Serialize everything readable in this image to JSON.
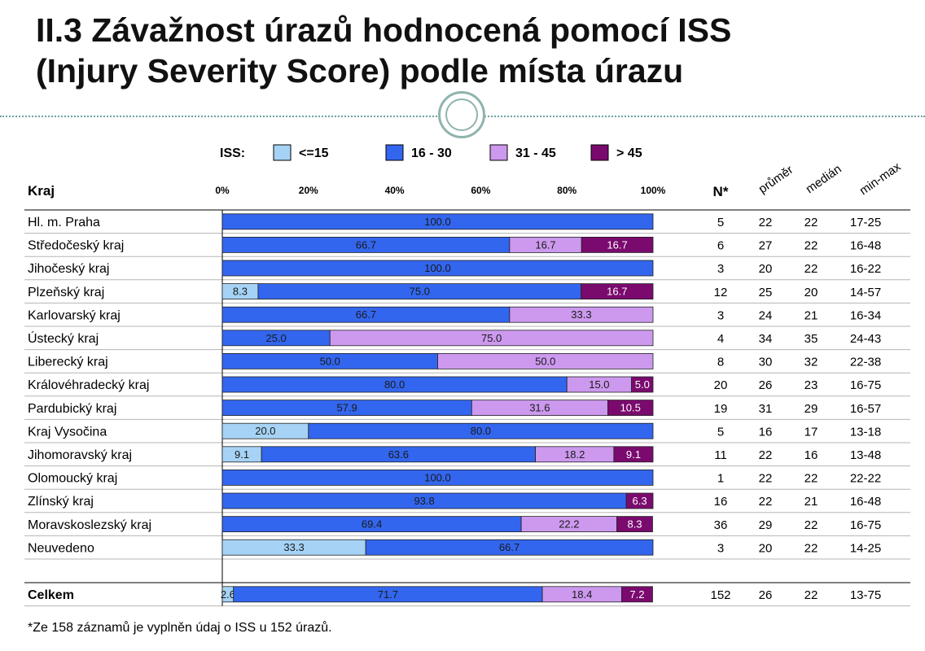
{
  "slide": {
    "title_line1": "II.3 Závažnost úrazů hodnocená pomocí ISS",
    "title_line2": "(Injury Severity Score) podle místa úrazu",
    "footnote": "*Ze 158 záznamů je vyplněn údaj o ISS  u 152 úrazů."
  },
  "chart_data": {
    "type": "bar",
    "orientation": "horizontal",
    "stacked": "percent",
    "legend_title": "ISS:",
    "legend_position": "top",
    "category_header": "Kraj",
    "xlim": [
      0,
      100
    ],
    "x_ticks": [
      "0%",
      "20%",
      "40%",
      "60%",
      "80%",
      "100%"
    ],
    "series": [
      {
        "name": "<=15",
        "color": "#a6d3f5"
      },
      {
        "name": "16 - 30",
        "color": "#3366ee"
      },
      {
        "name": "31 - 45",
        "color": "#cc99ee"
      },
      {
        "name": "> 45",
        "color": "#7a0a6e"
      }
    ],
    "table_headers": [
      "N*",
      "průměr",
      "medián",
      "min-max"
    ],
    "rows": [
      {
        "label": "Hl. m. Praha",
        "values": [
          0,
          100.0,
          0,
          0
        ],
        "labels": [
          "",
          "100.0",
          "",
          ""
        ],
        "n": "5",
        "mean": "22",
        "median": "22",
        "range": "17-25"
      },
      {
        "label": "Středočeský kraj",
        "values": [
          0,
          66.7,
          16.7,
          16.7
        ],
        "labels": [
          "",
          "66.7",
          "16.7",
          "16.7"
        ],
        "n": "6",
        "mean": "27",
        "median": "22",
        "range": "16-48"
      },
      {
        "label": "Jihočeský kraj",
        "values": [
          0,
          100.0,
          0,
          0
        ],
        "labels": [
          "",
          "100.0",
          "",
          ""
        ],
        "n": "3",
        "mean": "20",
        "median": "22",
        "range": "16-22"
      },
      {
        "label": "Plzeňský kraj",
        "values": [
          8.3,
          75.0,
          0,
          16.7
        ],
        "labels": [
          "8.3",
          "75.0",
          "",
          "16.7"
        ],
        "n": "12",
        "mean": "25",
        "median": "20",
        "range": "14-57"
      },
      {
        "label": "Karlovarský kraj",
        "values": [
          0,
          66.7,
          33.3,
          0
        ],
        "labels": [
          "",
          "66.7",
          "33.3",
          ""
        ],
        "n": "3",
        "mean": "24",
        "median": "21",
        "range": "16-34"
      },
      {
        "label": "Ústecký kraj",
        "values": [
          0,
          25.0,
          75.0,
          0
        ],
        "labels": [
          "",
          "25.0",
          "75.0",
          ""
        ],
        "n": "4",
        "mean": "34",
        "median": "35",
        "range": "24-43"
      },
      {
        "label": "Liberecký kraj",
        "values": [
          0,
          50.0,
          50.0,
          0
        ],
        "labels": [
          "",
          "50.0",
          "50.0",
          ""
        ],
        "n": "8",
        "mean": "30",
        "median": "32",
        "range": "22-38"
      },
      {
        "label": "Královéhradecký kraj",
        "values": [
          0,
          80.0,
          15.0,
          5.0
        ],
        "labels": [
          "",
          "80.0",
          "15.0",
          "5.0"
        ],
        "n": "20",
        "mean": "26",
        "median": "23",
        "range": "16-75"
      },
      {
        "label": "Pardubický kraj",
        "values": [
          0,
          57.9,
          31.6,
          10.5
        ],
        "labels": [
          "",
          "57.9",
          "31.6",
          "10.5"
        ],
        "n": "19",
        "mean": "31",
        "median": "29",
        "range": "16-57"
      },
      {
        "label": "Kraj Vysočina",
        "values": [
          20.0,
          80.0,
          0,
          0
        ],
        "labels": [
          "20.0",
          "80.0",
          "",
          ""
        ],
        "n": "5",
        "mean": "16",
        "median": "17",
        "range": "13-18"
      },
      {
        "label": "Jihomoravský kraj",
        "values": [
          9.1,
          63.6,
          18.2,
          9.1
        ],
        "labels": [
          "9.1",
          "63.6",
          "18.2",
          "9.1"
        ],
        "n": "11",
        "mean": "22",
        "median": "16",
        "range": "13-48"
      },
      {
        "label": "Olomoucký kraj",
        "values": [
          0,
          100.0,
          0,
          0
        ],
        "labels": [
          "",
          "100.0",
          "",
          ""
        ],
        "n": "1",
        "mean": "22",
        "median": "22",
        "range": "22-22"
      },
      {
        "label": "Zlínský kraj",
        "values": [
          0,
          93.8,
          0,
          6.3
        ],
        "labels": [
          "",
          "93.8",
          "",
          "6.3"
        ],
        "n": "16",
        "mean": "22",
        "median": "21",
        "range": "16-48"
      },
      {
        "label": "Moravskoslezský kraj",
        "values": [
          0,
          69.4,
          22.2,
          8.3
        ],
        "labels": [
          "",
          "69.4",
          "22.2",
          "8.3"
        ],
        "n": "36",
        "mean": "29",
        "median": "22",
        "range": "16-75"
      },
      {
        "label": "Neuvedeno",
        "values": [
          33.3,
          66.7,
          0,
          0
        ],
        "labels": [
          "33.3",
          "66.7",
          "",
          ""
        ],
        "n": "3",
        "mean": "20",
        "median": "22",
        "range": "14-25"
      }
    ],
    "total": {
      "label": "Celkem",
      "values": [
        2.6,
        71.7,
        18.4,
        7.2
      ],
      "labels": [
        "2.6",
        "71.7",
        "18.4",
        "7.2"
      ],
      "n": "152",
      "mean": "26",
      "median": "22",
      "range": "13-75"
    }
  }
}
